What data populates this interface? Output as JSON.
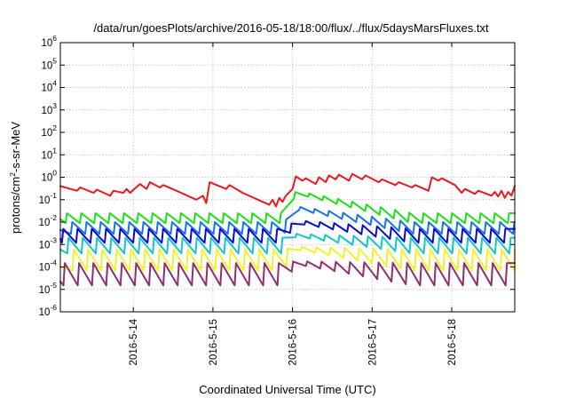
{
  "chart_data": {
    "type": "line",
    "title": "/data/run/goesPlots/archive/2016-05-18/18:00/flux/../flux/5daysMarsFluxes.txt",
    "xlabel": "Coordinated Universal Time (UTC)",
    "ylabel": {
      "pre": "protons/cm",
      "sup": "2",
      "post": "-s-sr-MeV"
    },
    "x_range": [
      "2016-05-13T02:00",
      "2016-05-18T19:00"
    ],
    "x_ticks": [
      {
        "label": "2016-5-14",
        "date": "2016-05-14T00:00"
      },
      {
        "label": "2016-5-15",
        "date": "2016-05-15T00:00"
      },
      {
        "label": "2016-5-16",
        "date": "2016-05-16T00:00"
      },
      {
        "label": "2016-5-17",
        "date": "2016-05-17T00:00"
      },
      {
        "label": "2016-5-18",
        "date": "2016-05-18T00:00"
      }
    ],
    "y_scale": "log",
    "ylim": [
      1e-06,
      1000000.0
    ],
    "y_ticks": [
      {
        "base": "10",
        "exp": "-6",
        "value": 1e-06
      },
      {
        "base": "10",
        "exp": "-5",
        "value": 1e-05
      },
      {
        "base": "10",
        "exp": "-4",
        "value": 0.0001
      },
      {
        "base": "10",
        "exp": "-3",
        "value": 0.001
      },
      {
        "base": "10",
        "exp": "-2",
        "value": 0.01
      },
      {
        "base": "10",
        "exp": "-1",
        "value": 0.1
      },
      {
        "base": "10",
        "exp": "0",
        "value": 1
      },
      {
        "base": "10",
        "exp": "1",
        "value": 10.0
      },
      {
        "base": "10",
        "exp": "2",
        "value": 100.0
      },
      {
        "base": "10",
        "exp": "3",
        "value": 1000.0
      },
      {
        "base": "10",
        "exp": "4",
        "value": 10000.0
      },
      {
        "base": "10",
        "exp": "5",
        "value": 100000.0
      },
      {
        "base": "10",
        "exp": "6",
        "value": 1000000.0
      }
    ],
    "grid": true,
    "legend": "none",
    "series": [
      {
        "color": "#e8191f",
        "points": [
          [
            "2016-05-13T02:00",
            0.4
          ],
          [
            "2016-05-13T07:00",
            0.25
          ],
          [
            "2016-05-13T08:00",
            0.35
          ],
          [
            "2016-05-13T12:00",
            0.2
          ],
          [
            "2016-05-13T13:00",
            0.28
          ],
          [
            "2016-05-13T17:00",
            0.15
          ],
          [
            "2016-05-13T18:00",
            0.25
          ],
          [
            "2016-05-13T21:00",
            0.2
          ],
          [
            "2016-05-13T22:00",
            0.3
          ],
          [
            "2016-05-13T23:00",
            0.2
          ],
          [
            "2016-05-14T02:00",
            0.5
          ],
          [
            "2016-05-14T04:00",
            0.3
          ],
          [
            "2016-05-14T05:00",
            0.6
          ],
          [
            "2016-05-14T08:00",
            0.35
          ],
          [
            "2016-05-14T09:00",
            0.45
          ],
          [
            "2016-05-14T13:00",
            0.25
          ],
          [
            "2016-05-14T19:00",
            0.1
          ],
          [
            "2016-05-14T21:00",
            0.15
          ],
          [
            "2016-05-14T22:00",
            0.07
          ],
          [
            "2016-05-14T23:00",
            0.6
          ],
          [
            "2016-05-15T04:00",
            0.3
          ],
          [
            "2016-05-15T05:00",
            0.45
          ],
          [
            "2016-05-15T09:00",
            0.2
          ],
          [
            "2016-05-15T15:00",
            0.08
          ],
          [
            "2016-05-15T17:00",
            0.06
          ],
          [
            "2016-05-15T18:00",
            0.1
          ],
          [
            "2016-05-15T19:00",
            0.05
          ],
          [
            "2016-05-15T20:00",
            0.12
          ],
          [
            "2016-05-15T21:00",
            0.08
          ],
          [
            "2016-05-15T22:00",
            0.15
          ],
          [
            "2016-05-16T00:00",
            0.3
          ],
          [
            "2016-05-16T01:00",
            1.1
          ],
          [
            "2016-05-16T03:00",
            0.7
          ],
          [
            "2016-05-16T04:00",
            0.9
          ],
          [
            "2016-05-16T07:00",
            0.5
          ],
          [
            "2016-05-16T08:00",
            1.0
          ],
          [
            "2016-05-16T10:00",
            0.6
          ],
          [
            "2016-05-16T11:00",
            1.2
          ],
          [
            "2016-05-16T13:00",
            0.8
          ],
          [
            "2016-05-16T14:00",
            1.3
          ],
          [
            "2016-05-16T17:00",
            0.7
          ],
          [
            "2016-05-16T18:00",
            1.4
          ],
          [
            "2016-05-16T21:00",
            0.8
          ],
          [
            "2016-05-16T22:00",
            1.2
          ],
          [
            "2016-05-17T02:00",
            0.6
          ],
          [
            "2016-05-17T03:00",
            0.8
          ],
          [
            "2016-05-17T07:00",
            0.45
          ],
          [
            "2016-05-17T08:00",
            0.6
          ],
          [
            "2016-05-17T12:00",
            0.35
          ],
          [
            "2016-05-17T13:00",
            0.45
          ],
          [
            "2016-05-17T17:00",
            0.25
          ],
          [
            "2016-05-17T18:00",
            1.0
          ],
          [
            "2016-05-17T20:00",
            0.7
          ],
          [
            "2016-05-17T21:00",
            0.9
          ],
          [
            "2016-05-18T01:00",
            0.45
          ],
          [
            "2016-05-18T03:00",
            0.2
          ],
          [
            "2016-05-18T04:00",
            0.3
          ],
          [
            "2016-05-18T07:00",
            0.18
          ],
          [
            "2016-05-18T08:00",
            0.25
          ],
          [
            "2016-05-18T12:00",
            0.15
          ],
          [
            "2016-05-18T13:00",
            0.22
          ],
          [
            "2016-05-18T14:00",
            0.14
          ],
          [
            "2016-05-18T15:00",
            0.25
          ],
          [
            "2016-05-18T16:00",
            0.12
          ],
          [
            "2016-05-18T17:00",
            0.22
          ],
          [
            "2016-05-18T18:00",
            0.15
          ],
          [
            "2016-05-18T19:00",
            0.4
          ]
        ]
      },
      {
        "color": "#19e019",
        "base_high": 0.025,
        "base_low": 0.009,
        "event_peak": 0.25,
        "event_end": 0.03
      },
      {
        "color": "#1a73e8",
        "base_high": 0.01,
        "base_low": 0.003,
        "event_peak": 0.05,
        "event_end": 0.012
      },
      {
        "color": "#0b0bcf",
        "base_high": 0.005,
        "base_low": 0.0012,
        "event_peak": 0.012,
        "event_end": 0.005
      },
      {
        "color": "#10c8c8",
        "base_high": 0.002,
        "base_low": 0.0004,
        "event_peak": 0.003,
        "event_end": 0.002
      },
      {
        "color": "#f2f22a",
        "base_high": 0.0006,
        "base_low": 7e-05,
        "event_peak": 0.0008,
        "event_end": 0.0006
      },
      {
        "color": "#8f2f6e",
        "base_high": 0.00015,
        "base_low": 1.5e-05,
        "event_peak": 0.00018,
        "event_end": 0.00015
      }
    ]
  }
}
